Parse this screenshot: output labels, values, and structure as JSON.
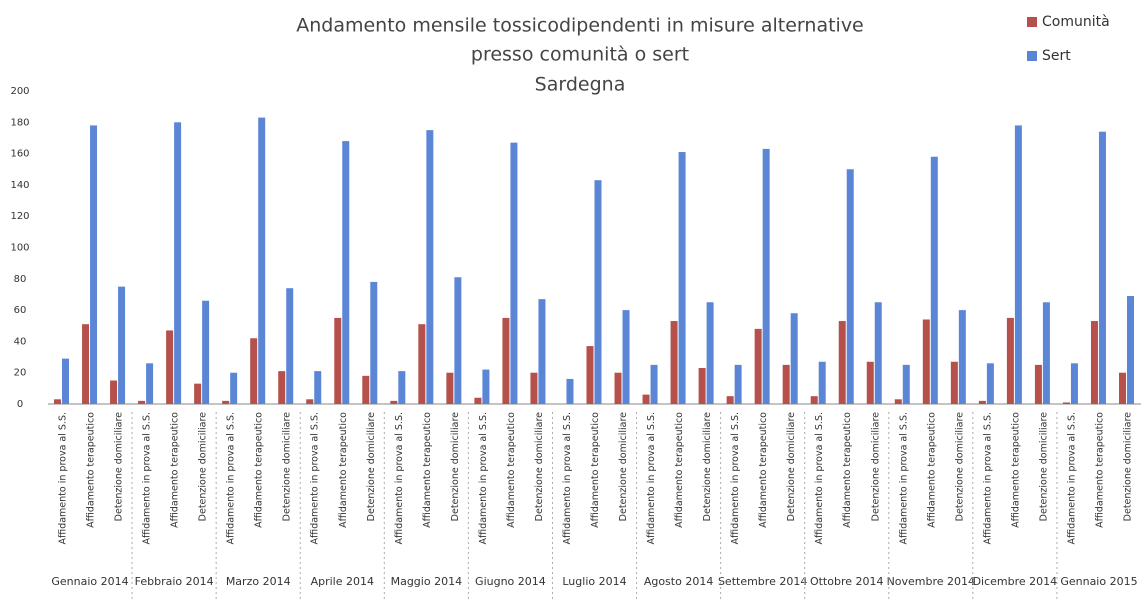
{
  "chart_data": {
    "type": "bar",
    "title": [
      "Andamento mensile tossicodipendenti in misure alternative",
      "presso comunità o sert",
      "Sardegna"
    ],
    "groups": [
      "Gennaio 2014",
      "Febbraio 2014",
      "Marzo 2014",
      "Aprile 2014",
      "Maggio 2014",
      "Giugno 2014",
      "Luglio 2014",
      "Agosto 2014",
      "Settembre 2014",
      "Ottobre 2014",
      "Novembre 2014",
      "Dicembre 2014",
      "Gennaio 2015"
    ],
    "categories": [
      "Affidamento in prova al S.S.",
      "Affidamento terapeutico",
      "Detenzione domiciliare",
      "Affidamento in prova al S.S.",
      "Affidamento terapeutico",
      "Detenzione domiciliare",
      "Affidamento in prova al S.S.",
      "Affidamento terapeutico",
      "Detenzione domiciliare",
      "Affidamento in prova al S.S.",
      "Affidamento terapeutico",
      "Detenzione domiciliare",
      "Affidamento in prova al S.S.",
      "Affidamento terapeutico",
      "Detenzione domiciliare",
      "Affidamento in prova al S.S.",
      "Affidamento terapeutico",
      "Detenzione domiciliare",
      "Affidamento in prova al S.S.",
      "Affidamento terapeutico",
      "Detenzione domiciliare",
      "Affidamento in prova al S.S.",
      "Affidamento terapeutico",
      "Detenzione domiciliare",
      "Affidamento in prova al S.S.",
      "Affidamento terapeutico",
      "Detenzione domiciliare",
      "Affidamento in prova al S.S.",
      "Affidamento terapeutico",
      "Detenzione domiciliare",
      "Affidamento in prova al S.S.",
      "Affidamento terapeutico",
      "Detenzione domiciliare",
      "Affidamento in prova al S.S.",
      "Affidamento terapeutico",
      "Detenzione domiciliare",
      "Affidamento in prova al S.S.",
      "Affidamento terapeutico",
      "Detenzione domiciliare"
    ],
    "series": [
      {
        "name": "Comunità",
        "color": "#b5504a",
        "values": [
          3,
          51,
          15,
          2,
          47,
          13,
          2,
          42,
          21,
          3,
          55,
          18,
          2,
          51,
          20,
          4,
          55,
          20,
          0,
          37,
          20,
          6,
          53,
          23,
          5,
          48,
          25,
          5,
          53,
          27,
          3,
          54,
          27,
          2,
          55,
          25,
          1,
          53,
          20
        ]
      },
      {
        "name": "Sert",
        "color": "#5b86d6",
        "values": [
          29,
          178,
          75,
          26,
          180,
          66,
          20,
          183,
          74,
          21,
          168,
          78,
          21,
          175,
          81,
          22,
          167,
          67,
          16,
          143,
          60,
          25,
          161,
          65,
          25,
          163,
          58,
          27,
          150,
          65,
          25,
          158,
          60,
          26,
          178,
          65,
          26,
          174,
          69
        ]
      }
    ],
    "ylim": [
      0,
      200
    ],
    "yticks": [
      0,
      20,
      40,
      60,
      80,
      100,
      120,
      140,
      160,
      180,
      200
    ],
    "legend": "top-right"
  }
}
